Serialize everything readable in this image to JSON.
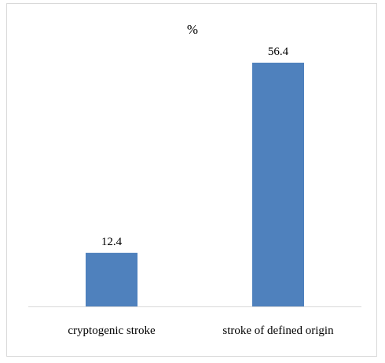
{
  "chart_data": {
    "type": "bar",
    "title": "%",
    "categories": [
      "cryptogenic stroke",
      "stroke of defined origin"
    ],
    "values": [
      12.4,
      56.4
    ],
    "data_labels": [
      "12.4",
      "56.4"
    ],
    "xlabel": "",
    "ylabel": "",
    "ylim": [
      0,
      60
    ],
    "grid": false,
    "legend": "none",
    "bar_color": "#4f81bd",
    "axis_color": "#d9d9d9"
  }
}
